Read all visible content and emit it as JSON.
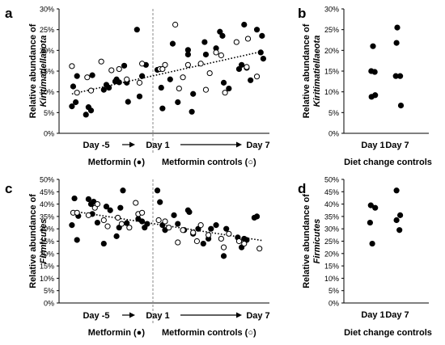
{
  "chart_data": [
    {
      "panel": "a",
      "type": "scatter",
      "ylabel_line1": "Relative abundance of",
      "ylabel_line2": "Kiritimatiellaeota",
      "ylim": [
        0,
        30
      ],
      "yticks": [
        "0%",
        "5%",
        "10%",
        "15%",
        "20%",
        "25%",
        "30%"
      ],
      "x_left_label": "Day -5",
      "x_mid_label": "Day 1",
      "x_right_label": "Day 7",
      "legend_left": "Metformin (●)",
      "legend_right": "Metformin controls (○)",
      "trendline": [
        9.5,
        19.8
      ],
      "series": [
        {
          "name": "Metformin",
          "marker": "filled",
          "points": [
            [
              0.5,
              6.5
            ],
            [
              0.6,
              11.3
            ],
            [
              0.8,
              7.5
            ],
            [
              0.9,
              13.8
            ],
            [
              1.6,
              4.5
            ],
            [
              1.8,
              6.3
            ],
            [
              2.0,
              5.5
            ],
            [
              2.1,
              14.0
            ],
            [
              3.0,
              10.5
            ],
            [
              3.2,
              11.7
            ],
            [
              3.4,
              11.0
            ],
            [
              3.9,
              12.5
            ],
            [
              4.0,
              13.0
            ],
            [
              4.2,
              12.3
            ],
            [
              4.6,
              16.3
            ],
            [
              4.8,
              12.2
            ],
            [
              4.9,
              7.6
            ],
            [
              5.6,
              25.0
            ],
            [
              5.8,
              8.9
            ],
            [
              6.0,
              13.8
            ],
            [
              6.3,
              16.5
            ],
            [
              7.2,
              15.3
            ],
            [
              7.5,
              11.0
            ],
            [
              7.6,
              6.0
            ],
            [
              8.2,
              13.0
            ],
            [
              8.4,
              21.6
            ],
            [
              8.8,
              7.5
            ],
            [
              9.6,
              20.1
            ],
            [
              9.6,
              19.0
            ],
            [
              9.9,
              5.2
            ],
            [
              10.0,
              9.5
            ],
            [
              10.9,
              22.0
            ],
            [
              11.0,
              19.0
            ],
            [
              11.8,
              20.5
            ],
            [
              12.1,
              24.5
            ],
            [
              12.3,
              23.5
            ],
            [
              12.4,
              12.2
            ],
            [
              12.8,
              10.8
            ],
            [
              13.6,
              15.5
            ],
            [
              13.8,
              16.5
            ],
            [
              14.0,
              26.2
            ],
            [
              14.2,
              15.8
            ],
            [
              14.5,
              12.8
            ],
            [
              15.0,
              25.0
            ],
            [
              15.3,
              19.5
            ],
            [
              15.4,
              23.5
            ],
            [
              15.5,
              18.0
            ]
          ]
        },
        {
          "name": "Metformin controls",
          "marker": "open",
          "points": [
            [
              0.5,
              16.2
            ],
            [
              0.9,
              9.8
            ],
            [
              1.7,
              13.5
            ],
            [
              2.0,
              10.3
            ],
            [
              2.8,
              17.3
            ],
            [
              3.6,
              15.2
            ],
            [
              4.2,
              15.5
            ],
            [
              4.8,
              13.0
            ],
            [
              5.8,
              12.2
            ],
            [
              6.0,
              16.8
            ],
            [
              7.4,
              15.5
            ],
            [
              7.6,
              15.5
            ],
            [
              7.8,
              16.5
            ],
            [
              8.6,
              26.2
            ],
            [
              8.9,
              10.8
            ],
            [
              9.2,
              13.5
            ],
            [
              9.6,
              16.5
            ],
            [
              10.6,
              16.8
            ],
            [
              11.0,
              10.5
            ],
            [
              11.3,
              14.5
            ],
            [
              11.8,
              19.5
            ],
            [
              12.2,
              18.8
            ],
            [
              12.5,
              9.8
            ],
            [
              13.4,
              22.0
            ],
            [
              14.2,
              16.0
            ],
            [
              14.3,
              22.8
            ],
            [
              15.0,
              13.7
            ]
          ]
        }
      ]
    },
    {
      "panel": "b",
      "type": "scatter",
      "ylabel_line1": "Relative abundance of",
      "ylabel_line2": "Kiritimatiellaeota",
      "ylim": [
        0,
        30
      ],
      "yticks": [
        "0%",
        "5%",
        "10%",
        "15%",
        "20%",
        "25%",
        "30%"
      ],
      "categories": [
        "Day 1",
        "Day 7"
      ],
      "xlabel": "Diet change controls",
      "points": [
        [
          "Day 1",
          -0.12,
          15.0
        ],
        [
          "Day 1",
          0.12,
          14.8
        ],
        [
          "Day 1",
          0.0,
          21.0
        ],
        [
          "Day 1",
          -0.1,
          8.8
        ],
        [
          "Day 1",
          0.15,
          9.2
        ],
        [
          "Day 7",
          0.0,
          25.5
        ],
        [
          "Day 7",
          -0.05,
          21.8
        ],
        [
          "Day 7",
          -0.1,
          13.8
        ],
        [
          "Day 7",
          0.2,
          13.8
        ],
        [
          "Day 7",
          0.25,
          6.7
        ]
      ]
    },
    {
      "panel": "c",
      "type": "scatter",
      "ylabel_line1": "Relative abundance of",
      "ylabel_line2": "Firmicutes",
      "ylim": [
        0,
        50
      ],
      "yticks": [
        "0%",
        "5%",
        "10%",
        "15%",
        "20%",
        "25%",
        "30%",
        "35%",
        "40%",
        "45%",
        "50%"
      ],
      "x_left_label": "Day -5",
      "x_mid_label": "Day 1",
      "x_right_label": "Day 7",
      "legend_left": "Metformin (●)",
      "legend_right": "Metformin controls (○)",
      "trendline": [
        37.2,
        25.2
      ],
      "series": [
        {
          "name": "Metformin",
          "marker": "filled",
          "points": [
            [
              0.5,
              31.5
            ],
            [
              0.7,
              42.3
            ],
            [
              0.9,
              25.5
            ],
            [
              1.0,
              35.2
            ],
            [
              1.8,
              42.0
            ],
            [
              2.0,
              40.0
            ],
            [
              2.1,
              36.0
            ],
            [
              2.2,
              41.0
            ],
            [
              2.5,
              32.5
            ],
            [
              3.0,
              24.0
            ],
            [
              3.2,
              39.0
            ],
            [
              3.5,
              37.5
            ],
            [
              4.0,
              27.0
            ],
            [
              4.2,
              30.5
            ],
            [
              4.3,
              38.5
            ],
            [
              4.5,
              45.5
            ],
            [
              4.8,
              32.3
            ],
            [
              5.7,
              34.0
            ],
            [
              6.0,
              33.0
            ],
            [
              6.2,
              30.5
            ],
            [
              6.4,
              32.0
            ],
            [
              7.2,
              45.5
            ],
            [
              7.4,
              40.8
            ],
            [
              7.6,
              31.5
            ],
            [
              7.8,
              29.5
            ],
            [
              8.5,
              35.5
            ],
            [
              8.8,
              32.0
            ],
            [
              9.3,
              29.5
            ],
            [
              9.6,
              37.5
            ],
            [
              9.7,
              36.8
            ],
            [
              10.0,
              28.0
            ],
            [
              10.4,
              30.0
            ],
            [
              10.8,
              24.0
            ],
            [
              11.2,
              26.0
            ],
            [
              11.4,
              30.0
            ],
            [
              11.8,
              31.5
            ],
            [
              12.4,
              19.0
            ],
            [
              12.6,
              30.0
            ],
            [
              13.5,
              26.5
            ],
            [
              13.8,
              22.5
            ],
            [
              14.0,
              26.0
            ],
            [
              14.2,
              25.5
            ],
            [
              14.8,
              34.5
            ],
            [
              15.0,
              35.0
            ]
          ]
        },
        {
          "name": "Metformin controls",
          "marker": "open",
          "points": [
            [
              0.6,
              36.5
            ],
            [
              0.9,
              36.5
            ],
            [
              1.8,
              35.5
            ],
            [
              2.3,
              38.5
            ],
            [
              2.5,
              40.0
            ],
            [
              3.0,
              33.5
            ],
            [
              3.3,
              31.0
            ],
            [
              4.1,
              34.5
            ],
            [
              4.4,
              32.0
            ],
            [
              5.0,
              30.5
            ],
            [
              5.5,
              40.5
            ],
            [
              5.7,
              36.0
            ],
            [
              6.0,
              36.5
            ],
            [
              7.3,
              33.5
            ],
            [
              7.8,
              33.0
            ],
            [
              8.1,
              30.5
            ],
            [
              8.8,
              24.5
            ],
            [
              9.2,
              29.5
            ],
            [
              10.0,
              28.5
            ],
            [
              10.3,
              25.0
            ],
            [
              10.6,
              31.5
            ],
            [
              11.2,
              27.5
            ],
            [
              12.2,
              26.0
            ],
            [
              12.4,
              22.5
            ],
            [
              12.8,
              28.0
            ],
            [
              13.6,
              25.0
            ],
            [
              14.0,
              24.0
            ],
            [
              15.2,
              22.0
            ]
          ]
        }
      ]
    },
    {
      "panel": "d",
      "type": "scatter",
      "ylabel_line1": "Relative abundance of",
      "ylabel_line2": "Firmicutes",
      "ylim": [
        0,
        50
      ],
      "yticks": [
        "0%",
        "5%",
        "10%",
        "15%",
        "20%",
        "25%",
        "30%",
        "35%",
        "40%",
        "45%",
        "50%"
      ],
      "categories": [
        "Day 1",
        "Day 7"
      ],
      "xlabel": "Diet change controls",
      "points": [
        [
          "Day 1",
          -0.15,
          39.5
        ],
        [
          "Day 1",
          0.15,
          38.5
        ],
        [
          "Day 1",
          -0.2,
          32.5
        ],
        [
          "Day 1",
          -0.05,
          24.0
        ],
        [
          "Day 7",
          -0.05,
          45.5
        ],
        [
          "Day 7",
          0.2,
          35.5
        ],
        [
          "Day 7",
          -0.05,
          33.5
        ],
        [
          "Day 7",
          0.15,
          29.5
        ]
      ]
    }
  ]
}
